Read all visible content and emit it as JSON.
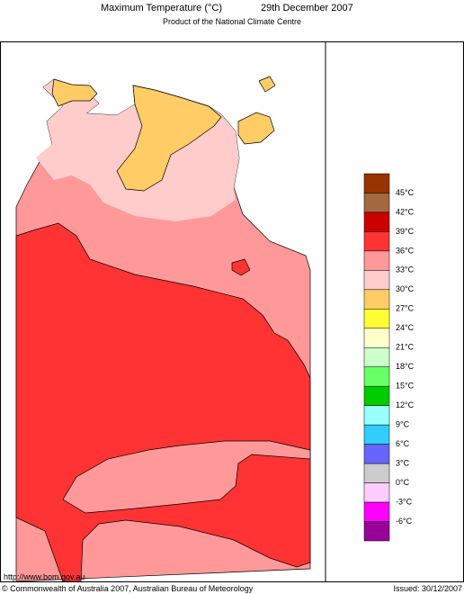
{
  "header": {
    "title": "Maximum Temperature (°C)",
    "date": "29th December 2007",
    "subtitle": "Product of the National Climate Centre"
  },
  "legend": {
    "labels": [
      "45°C",
      "42°C",
      "39°C",
      "36°C",
      "33°C",
      "30°C",
      "27°C",
      "24°C",
      "21°C",
      "18°C",
      "15°C",
      "12°C",
      "9°C",
      "6°C",
      "3°C",
      "0°C",
      "-3°C",
      "-6°C"
    ],
    "colors": [
      "#993300",
      "#a5673f",
      "#cc0000",
      "#ff3333",
      "#ff9999",
      "#ffcccc",
      "#ffcc66",
      "#ffff33",
      "#ffffcc",
      "#ccffcc",
      "#66ff66",
      "#00cc00",
      "#99ffff",
      "#33ccff",
      "#6666ff",
      "#cccccc",
      "#ffccff",
      "#ff00ff",
      "#990099"
    ]
  },
  "footer": {
    "url": "http://www.bom.gov.au",
    "copyright": "© Commonwealth of Australia 2007, Australian Bureau of Meteorology",
    "issued": "Issued: 30/12/2007"
  }
}
